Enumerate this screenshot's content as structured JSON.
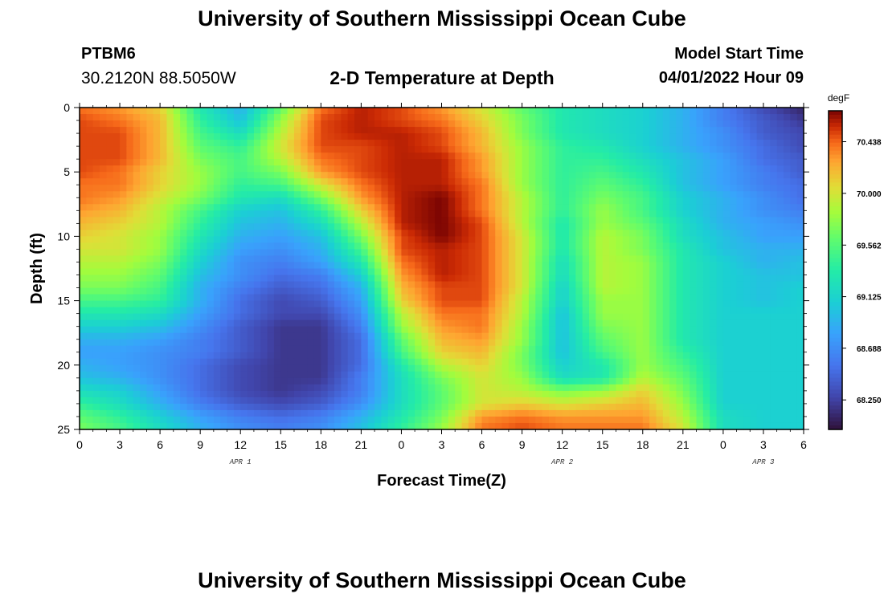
{
  "header": {
    "title": "University of Southern Mississippi Ocean Cube",
    "station_id": "PTBM6",
    "station_coords": "30.2120N  88.5050W",
    "subtitle": "2-D Temperature at Depth",
    "start_label": "Model Start Time",
    "start_value": "04/01/2022 Hour 09"
  },
  "footer": {
    "title": "University of Southern Mississippi Ocean Cube"
  },
  "chart_data": {
    "type": "heatmap",
    "title": "2-D Temperature at Depth",
    "xlabel": "Forecast Time(Z)",
    "ylabel": "Depth (ft)",
    "x_ticks": [
      "0",
      "3",
      "6",
      "9",
      "12",
      "15",
      "18",
      "21",
      "0",
      "3",
      "6",
      "9",
      "12",
      "15",
      "18",
      "21",
      "0",
      "3",
      "6"
    ],
    "x_range_hours": [
      0,
      54
    ],
    "y_ticks": [
      "0",
      "5",
      "10",
      "15",
      "20",
      "25"
    ],
    "ylim": [
      0,
      25
    ],
    "y_inverted": true,
    "date_labels": [
      {
        "text": "APR 1",
        "hour": 12
      },
      {
        "text": "APR 2",
        "hour": 36
      },
      {
        "text": "APR 3",
        "hour": 51
      }
    ],
    "colorbar": {
      "unit": "degF",
      "ticks": [
        "68.250",
        "68.688",
        "69.125",
        "69.562",
        "70.000",
        "70.438"
      ],
      "range": [
        68.0,
        70.7
      ]
    },
    "grid": {
      "cols": 19,
      "rows": 26,
      "x_hours": [
        0,
        3,
        6,
        9,
        12,
        15,
        18,
        21,
        24,
        27,
        30,
        33,
        36,
        39,
        42,
        45,
        48,
        51,
        54
      ],
      "depths_ft": [
        0,
        1,
        2,
        3,
        4,
        5,
        6,
        7,
        8,
        9,
        10,
        11,
        12,
        13,
        14,
        15,
        16,
        17,
        18,
        19,
        20,
        21,
        22,
        23,
        24,
        25
      ],
      "values": [
        [
          70.4,
          70.3,
          70.1,
          69.3,
          68.9,
          69.6,
          70.4,
          70.6,
          70.5,
          70.3,
          70.0,
          69.6,
          69.3,
          69.2,
          69.1,
          68.9,
          68.6,
          68.3,
          68.1
        ],
        [
          70.5,
          70.4,
          70.2,
          69.4,
          69.0,
          69.8,
          70.5,
          70.6,
          70.5,
          70.4,
          70.1,
          69.7,
          69.3,
          69.2,
          69.1,
          68.9,
          68.6,
          68.4,
          68.2
        ],
        [
          70.5,
          70.5,
          70.2,
          69.5,
          69.2,
          69.9,
          70.5,
          70.6,
          70.6,
          70.5,
          70.2,
          69.7,
          69.3,
          69.2,
          69.1,
          68.9,
          68.7,
          68.4,
          68.3
        ],
        [
          70.5,
          70.5,
          70.2,
          69.6,
          69.4,
          70.0,
          70.5,
          70.5,
          70.6,
          70.5,
          70.2,
          69.8,
          69.4,
          69.3,
          69.1,
          68.9,
          68.7,
          68.5,
          68.3
        ],
        [
          70.5,
          70.5,
          70.2,
          69.7,
          69.5,
          69.9,
          70.4,
          70.5,
          70.6,
          70.6,
          70.3,
          69.8,
          69.4,
          69.4,
          69.2,
          69.0,
          68.8,
          68.5,
          68.4
        ],
        [
          70.5,
          70.4,
          70.1,
          69.8,
          69.5,
          69.7,
          70.3,
          70.5,
          70.6,
          70.6,
          70.3,
          69.8,
          69.4,
          69.5,
          69.3,
          69.0,
          68.8,
          68.6,
          68.4
        ],
        [
          70.4,
          70.4,
          70.1,
          69.8,
          69.4,
          69.5,
          70.0,
          70.4,
          70.6,
          70.6,
          70.4,
          69.8,
          69.4,
          69.6,
          69.4,
          69.0,
          68.8,
          68.6,
          68.5
        ],
        [
          70.4,
          70.3,
          70.0,
          69.7,
          69.3,
          69.2,
          69.7,
          70.3,
          70.6,
          70.7,
          70.4,
          69.9,
          69.4,
          69.7,
          69.5,
          69.1,
          68.9,
          68.7,
          68.5
        ],
        [
          70.3,
          70.2,
          69.9,
          69.5,
          69.1,
          69.0,
          69.4,
          70.1,
          70.6,
          70.7,
          70.4,
          69.9,
          69.4,
          69.8,
          69.5,
          69.1,
          68.9,
          68.7,
          68.6
        ],
        [
          70.2,
          70.1,
          69.9,
          69.4,
          69.0,
          68.9,
          69.2,
          69.9,
          70.6,
          70.7,
          70.5,
          69.9,
          69.3,
          69.8,
          69.6,
          69.2,
          68.9,
          68.8,
          68.7
        ],
        [
          70.1,
          70.0,
          69.8,
          69.3,
          68.9,
          68.8,
          69.0,
          69.7,
          70.5,
          70.7,
          70.5,
          70.0,
          69.3,
          69.9,
          69.7,
          69.2,
          69.0,
          68.8,
          68.8
        ],
        [
          70.0,
          70.0,
          69.8,
          69.2,
          68.8,
          68.7,
          68.9,
          69.5,
          70.5,
          70.6,
          70.5,
          70.0,
          69.3,
          69.9,
          69.7,
          69.3,
          69.0,
          68.9,
          68.9
        ],
        [
          69.9,
          69.9,
          69.7,
          69.1,
          68.7,
          68.6,
          68.8,
          69.3,
          70.4,
          70.6,
          70.5,
          70.0,
          69.2,
          69.9,
          69.8,
          69.3,
          69.1,
          68.9,
          69.0
        ],
        [
          69.8,
          69.8,
          69.6,
          69.0,
          68.7,
          68.5,
          68.6,
          69.1,
          70.3,
          70.6,
          70.5,
          70.0,
          69.2,
          69.9,
          69.8,
          69.3,
          69.1,
          69.0,
          69.0
        ],
        [
          69.7,
          69.7,
          69.5,
          68.9,
          68.6,
          68.4,
          68.5,
          68.9,
          70.2,
          70.5,
          70.5,
          70.0,
          69.1,
          69.9,
          69.8,
          69.3,
          69.1,
          69.0,
          69.1
        ],
        [
          69.5,
          69.5,
          69.4,
          68.9,
          68.5,
          68.3,
          68.4,
          68.8,
          70.1,
          70.5,
          70.5,
          69.9,
          69.1,
          69.8,
          69.8,
          69.3,
          69.1,
          69.0,
          69.1
        ],
        [
          69.3,
          69.3,
          69.2,
          68.8,
          68.5,
          68.3,
          68.3,
          68.7,
          69.9,
          70.4,
          70.4,
          69.9,
          69.0,
          69.8,
          69.8,
          69.3,
          69.1,
          69.1,
          69.1
        ],
        [
          69.1,
          69.1,
          69.0,
          68.7,
          68.4,
          68.2,
          68.2,
          68.6,
          69.8,
          70.3,
          70.4,
          69.8,
          69.0,
          69.7,
          69.8,
          69.3,
          69.1,
          69.1,
          69.1
        ],
        [
          68.9,
          68.9,
          68.8,
          68.6,
          68.4,
          68.2,
          68.2,
          68.5,
          69.6,
          70.2,
          70.3,
          69.8,
          69.0,
          69.6,
          69.8,
          69.3,
          69.1,
          69.1,
          69.1
        ],
        [
          68.8,
          68.8,
          68.7,
          68.6,
          68.4,
          68.2,
          68.2,
          68.5,
          69.5,
          70.1,
          70.2,
          69.7,
          69.0,
          69.5,
          69.8,
          69.4,
          69.1,
          69.1,
          69.1
        ],
        [
          68.9,
          68.8,
          68.7,
          68.5,
          68.3,
          68.2,
          68.2,
          68.5,
          69.3,
          69.9,
          70.1,
          69.7,
          69.1,
          69.3,
          69.8,
          69.5,
          69.1,
          69.1,
          69.1
        ],
        [
          69.0,
          68.9,
          68.7,
          68.5,
          68.3,
          68.2,
          68.2,
          68.6,
          69.2,
          69.7,
          70.0,
          69.8,
          69.2,
          69.3,
          69.9,
          69.6,
          69.1,
          69.1,
          69.1
        ],
        [
          69.2,
          69.1,
          68.8,
          68.5,
          68.3,
          68.2,
          68.3,
          68.6,
          69.2,
          69.6,
          70.0,
          69.9,
          69.7,
          69.8,
          70.1,
          69.7,
          69.1,
          69.1,
          69.1
        ],
        [
          69.4,
          69.2,
          68.9,
          68.6,
          68.4,
          68.3,
          68.4,
          68.7,
          69.2,
          69.6,
          70.0,
          70.1,
          70.0,
          70.1,
          70.2,
          69.8,
          69.1,
          69.1,
          69.1
        ],
        [
          69.6,
          69.4,
          69.1,
          68.8,
          68.6,
          68.5,
          68.6,
          68.9,
          69.3,
          69.7,
          70.3,
          70.4,
          70.3,
          70.3,
          70.3,
          69.9,
          69.2,
          69.1,
          69.1
        ],
        [
          69.7,
          69.5,
          69.2,
          68.9,
          68.7,
          68.6,
          68.7,
          69.0,
          69.4,
          69.8,
          70.4,
          70.5,
          70.4,
          70.4,
          70.4,
          70.0,
          69.2,
          69.1,
          69.1
        ]
      ]
    }
  }
}
